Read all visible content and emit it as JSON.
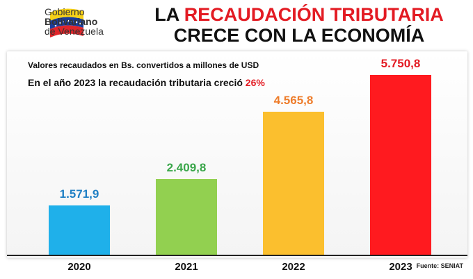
{
  "header": {
    "logo_lines": [
      "Gobierno",
      "Bolivariano",
      "de Venezuela"
    ],
    "title_prefix": "LA ",
    "title_highlight": "RECAUDACIÓN TRIBUTARIA",
    "title_line2": "CRECE CON LA ECONOMÍA"
  },
  "chart_data": {
    "type": "bar",
    "subtitle": "Valores recaudados en Bs. convertidos a millones de USD",
    "annotation_text": "En el año 2023 la recaudación tributaria creció ",
    "annotation_value": "26%",
    "categories": [
      "2020",
      "2021",
      "2022",
      "2023"
    ],
    "values": [
      1571.9,
      2409.8,
      4565.8,
      5750.8
    ],
    "value_labels": [
      "1.571,9",
      "2.409,8",
      "4.565,8",
      "5.750,8"
    ],
    "colors": [
      "#1fb0ea",
      "#92d050",
      "#fbbf2e",
      "#ff1a1f"
    ],
    "label_colors": [
      "#1f7fc4",
      "#3aa64a",
      "#ee7d2c",
      "#e31b23"
    ],
    "source": "Fuente: SENIAT",
    "grid": false
  }
}
